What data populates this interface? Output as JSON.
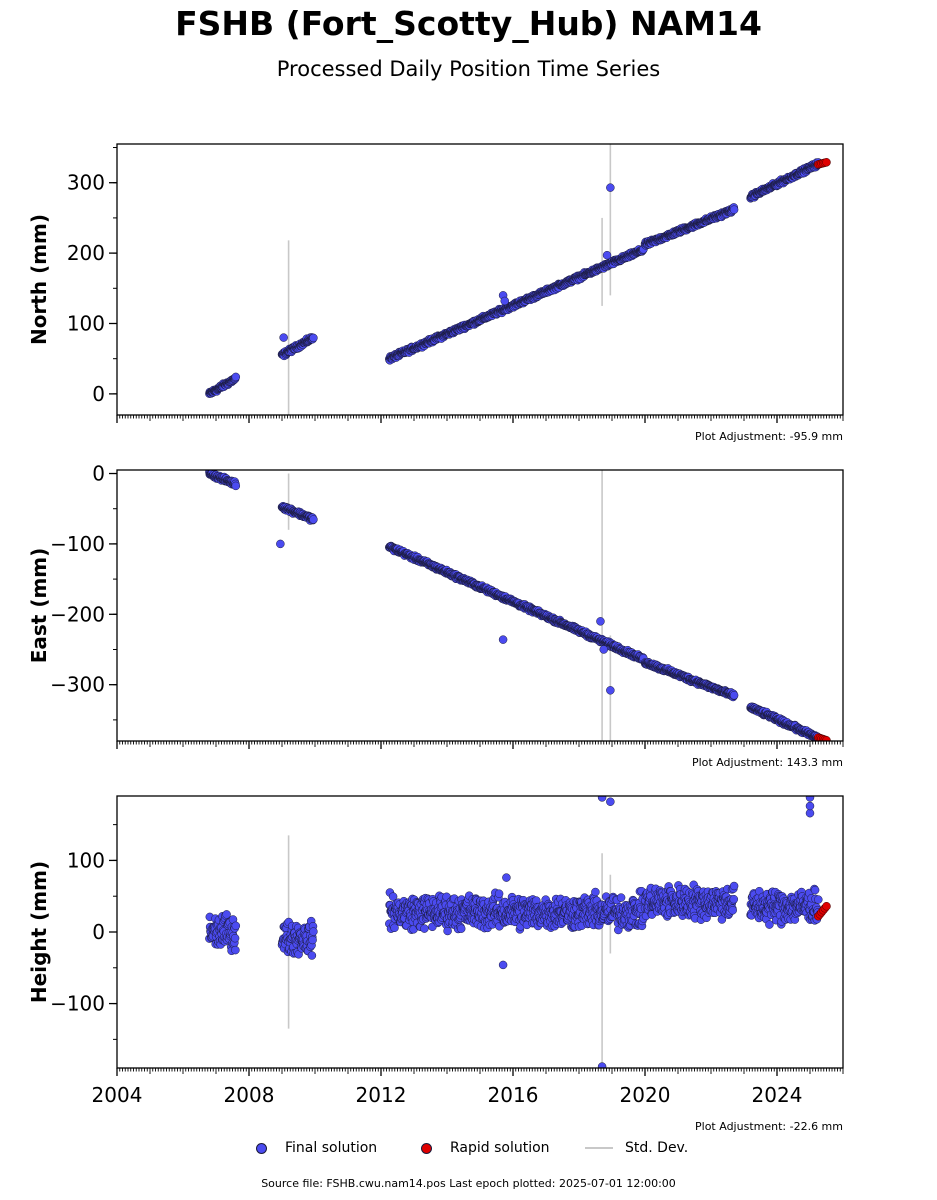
{
  "header": {
    "title": "FSHB (Fort_Scotty_Hub) NAM14",
    "subtitle": "Processed Daily Position Time Series"
  },
  "legend": {
    "final_label": "Final solution",
    "rapid_label": "Rapid solution",
    "std_label": "Std. Dev."
  },
  "footer": {
    "text": "Source file: FSHB.cwu.nam14.pos  Last epoch plotted: 2025-07-01 12:00:00"
  },
  "colors": {
    "final": "#4b4bf0",
    "rapid": "#e00000",
    "stddev": "#c8c8c8",
    "marker_edge": "#1a1a3a"
  },
  "chart_data": {
    "type": "scatter",
    "grid": false,
    "legend_position": "bottom-center",
    "x_range": [
      2004,
      2026
    ],
    "x_ticks": [
      2004,
      2008,
      2012,
      2016,
      2020,
      2024
    ],
    "panels": [
      {
        "ylabel": "North (mm)",
        "ylim": [
          -30,
          355
        ],
        "y_ticks": [
          0,
          100,
          200,
          300
        ],
        "y_tick_labels": [
          "0",
          "100",
          "200",
          "300"
        ],
        "adjustment": "Plot Adjustment: -95.9 mm",
        "segments": [
          {
            "x0": 2006.8,
            "x1": 2007.6,
            "y0": 0,
            "y1": 22
          },
          {
            "x0": 2009.0,
            "x1": 2009.95,
            "y0": 55,
            "y1": 80
          },
          {
            "x0": 2012.25,
            "x1": 2019.95,
            "y0": 50,
            "y1": 205
          },
          {
            "x0": 2020.0,
            "x1": 2022.7,
            "y0": 212,
            "y1": 262
          },
          {
            "x0": 2023.2,
            "x1": 2025.25,
            "y0": 280,
            "y1": 327
          }
        ],
        "outliers": [
          {
            "x": 2009.05,
            "y": 80
          },
          {
            "x": 2015.7,
            "y": 140
          },
          {
            "x": 2015.75,
            "y": 132
          },
          {
            "x": 2018.95,
            "y": 293
          },
          {
            "x": 2018.85,
            "y": 197
          }
        ],
        "errorbars": [
          {
            "x": 2009.2,
            "lo": -30,
            "hi": 218
          },
          {
            "x": 2018.7,
            "lo": 125,
            "hi": 250
          },
          {
            "x": 2018.95,
            "lo": 140,
            "hi": 355
          }
        ],
        "rapid": {
          "x0": 2025.25,
          "x1": 2025.5,
          "y0": 326,
          "y1": 329
        }
      },
      {
        "ylabel": "East (mm)",
        "ylim": [
          -380,
          5
        ],
        "y_ticks": [
          0,
          -100,
          -200,
          -300
        ],
        "y_tick_labels": [
          "0",
          "−100",
          "−200",
          "−300"
        ],
        "adjustment": "Plot Adjustment: 143.3 mm",
        "segments": [
          {
            "x0": 2006.8,
            "x1": 2007.6,
            "y0": 0,
            "y1": -15
          },
          {
            "x0": 2009.0,
            "x1": 2009.95,
            "y0": -47,
            "y1": -65
          },
          {
            "x0": 2012.25,
            "x1": 2019.95,
            "y0": -104,
            "y1": -264
          },
          {
            "x0": 2020.0,
            "x1": 2022.7,
            "y0": -268,
            "y1": -316
          },
          {
            "x0": 2023.2,
            "x1": 2025.25,
            "y0": -332,
            "y1": -376
          }
        ],
        "outliers": [
          {
            "x": 2008.95,
            "y": -100
          },
          {
            "x": 2015.7,
            "y": -236
          },
          {
            "x": 2018.95,
            "y": -308
          },
          {
            "x": 2018.65,
            "y": -210
          },
          {
            "x": 2018.75,
            "y": -250
          }
        ],
        "errorbars": [
          {
            "x": 2009.2,
            "lo": -80,
            "hi": 0
          },
          {
            "x": 2018.7,
            "lo": -380,
            "hi": 5
          },
          {
            "x": 2018.95,
            "lo": -380,
            "hi": -230
          }
        ],
        "rapid": {
          "x0": 2025.25,
          "x1": 2025.5,
          "y0": -375,
          "y1": -379
        }
      },
      {
        "ylabel": "Height (mm)",
        "ylim": [
          -190,
          190
        ],
        "y_ticks": [
          100,
          0,
          -100
        ],
        "y_tick_labels": [
          "100",
          "0",
          "−100"
        ],
        "adjustment": "Plot Adjustment: -22.6 mm",
        "segments": [
          {
            "x0": 2006.8,
            "x1": 2007.6,
            "y0": 0,
            "y1": 0
          },
          {
            "x0": 2009.0,
            "x1": 2009.95,
            "y0": -8,
            "y1": -8
          },
          {
            "x0": 2012.25,
            "x1": 2019.95,
            "y0": 28,
            "y1": 28
          },
          {
            "x0": 2020.0,
            "x1": 2022.7,
            "y0": 42,
            "y1": 42
          },
          {
            "x0": 2023.2,
            "x1": 2025.25,
            "y0": 36,
            "y1": 36
          }
        ],
        "outliers": [
          {
            "x": 2015.7,
            "y": -46
          },
          {
            "x": 2015.8,
            "y": 76
          },
          {
            "x": 2018.7,
            "y": 188
          },
          {
            "x": 2018.95,
            "y": 182
          },
          {
            "x": 2018.7,
            "y": -188
          },
          {
            "x": 2025.0,
            "y": 188
          },
          {
            "x": 2025.0,
            "y": 166
          },
          {
            "x": 2025.0,
            "y": 176
          }
        ],
        "errorbars": [
          {
            "x": 2009.2,
            "lo": -135,
            "hi": 135
          },
          {
            "x": 2018.7,
            "lo": -190,
            "hi": 110
          },
          {
            "x": 2018.95,
            "lo": -30,
            "hi": 80
          }
        ],
        "rapid": {
          "x0": 2025.25,
          "x1": 2025.5,
          "y0": 22,
          "y1": 36
        }
      }
    ]
  }
}
